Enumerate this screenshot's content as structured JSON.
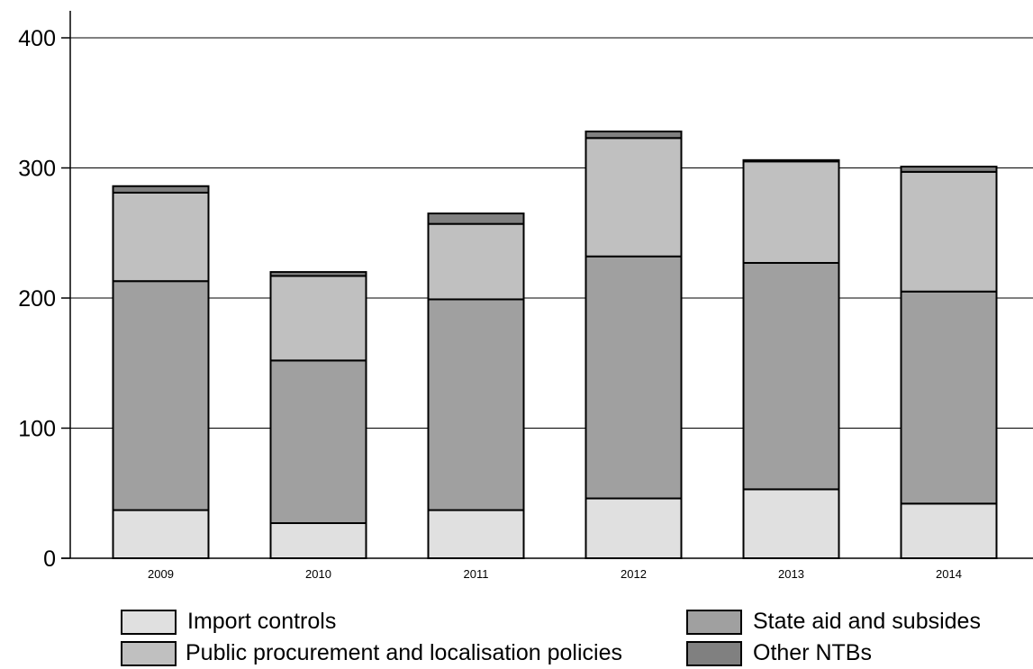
{
  "chart_data": {
    "type": "bar",
    "stacked": true,
    "categories": [
      "2009",
      "2010",
      "2011",
      "2012",
      "2013",
      "2014"
    ],
    "series": [
      {
        "name": "Import controls",
        "color": "#e0e0e0",
        "values": [
          37,
          27,
          37,
          46,
          53,
          42
        ]
      },
      {
        "name": "State aid and subsides",
        "color": "#a0a0a0",
        "values": [
          176,
          125,
          162,
          186,
          174,
          163
        ]
      },
      {
        "name": "Public procurement and localisation policies",
        "color": "#c0c0c0",
        "values": [
          68,
          65,
          58,
          91,
          78,
          92
        ]
      },
      {
        "name": "Other NTBs",
        "color": "#808080",
        "values": [
          5,
          3,
          8,
          5,
          1,
          4
        ]
      }
    ],
    "ylim": [
      0,
      400
    ],
    "yticks": [
      0,
      100,
      200,
      300,
      400
    ],
    "grid": true,
    "title": "",
    "xlabel": "",
    "ylabel": "",
    "legend_position": "bottom"
  },
  "legend": {
    "items": [
      {
        "label": "Import controls",
        "color": "#e0e0e0"
      },
      {
        "label": "State aid and subsides",
        "color": "#a0a0a0"
      },
      {
        "label": "Public procurement and localisation policies",
        "color": "#c0c0c0"
      },
      {
        "label": "Other NTBs",
        "color": "#808080"
      }
    ]
  }
}
